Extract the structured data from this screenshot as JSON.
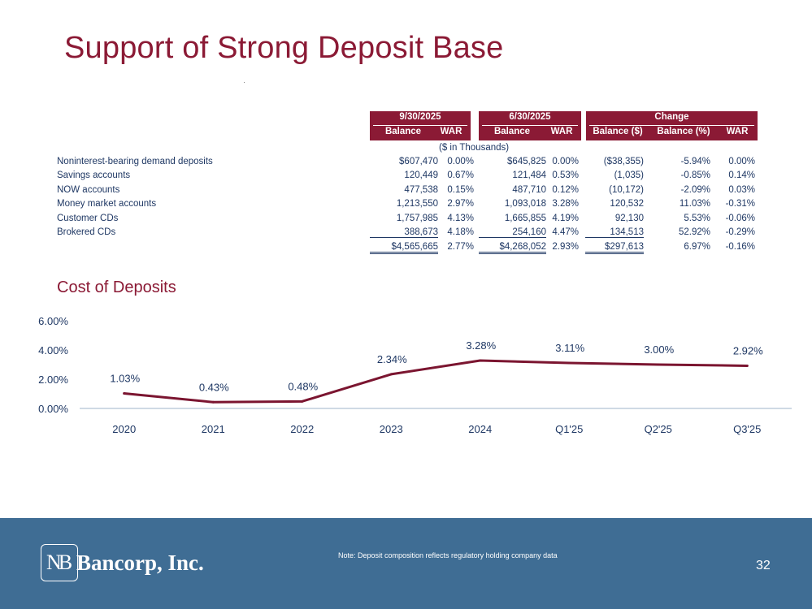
{
  "title": "Support of Strong Deposit Base",
  "table": {
    "groups": {
      "current": "9/30/2025",
      "prior": "6/30/2025",
      "change": "Change"
    },
    "columns": {
      "cur_balance": "Balance",
      "cur_war": "WAR",
      "prior_balance": "Balance",
      "prior_war": "WAR",
      "chg_balance_usd": "Balance ($)",
      "chg_balance_pct": "Balance (%)",
      "chg_war": "WAR"
    },
    "units": "($ in Thousands)",
    "rows": [
      {
        "label": "Noninterest-bearing demand deposits",
        "cur_balance": "$607,470",
        "cur_war": "0.00%",
        "prior_balance": "$645,825",
        "prior_war": "0.00%",
        "chg_usd": "($38,355)",
        "chg_pct": "-5.94%",
        "chg_war": "0.00%"
      },
      {
        "label": "Savings accounts",
        "cur_balance": "120,449",
        "cur_war": "0.67%",
        "prior_balance": "121,484",
        "prior_war": "0.53%",
        "chg_usd": "(1,035)",
        "chg_pct": "-0.85%",
        "chg_war": "0.14%"
      },
      {
        "label": "NOW accounts",
        "cur_balance": "477,538",
        "cur_war": "0.15%",
        "prior_balance": "487,710",
        "prior_war": "0.12%",
        "chg_usd": "(10,172)",
        "chg_pct": "-2.09%",
        "chg_war": "0.03%"
      },
      {
        "label": "Money market accounts",
        "cur_balance": "1,213,550",
        "cur_war": "2.97%",
        "prior_balance": "1,093,018",
        "prior_war": "3.28%",
        "chg_usd": "120,532",
        "chg_pct": "11.03%",
        "chg_war": "-0.31%"
      },
      {
        "label": "Customer CDs",
        "cur_balance": "1,757,985",
        "cur_war": "4.13%",
        "prior_balance": "1,665,855",
        "prior_war": "4.19%",
        "chg_usd": "92,130",
        "chg_pct": "5.53%",
        "chg_war": "-0.06%"
      },
      {
        "label": "Brokered CDs",
        "cur_balance": "388,673",
        "cur_war": "4.18%",
        "prior_balance": "254,160",
        "prior_war": "4.47%",
        "chg_usd": "134,513",
        "chg_pct": "52.92%",
        "chg_war": "-0.29%"
      },
      {
        "label": "",
        "cur_balance": "$4,565,665",
        "cur_war": "2.77%",
        "prior_balance": "$4,268,052",
        "prior_war": "2.93%",
        "chg_usd": "$297,613",
        "chg_pct": "6.97%",
        "chg_war": "-0.16%"
      }
    ]
  },
  "chart_data": {
    "type": "line",
    "title": "Cost of Deposits",
    "categories": [
      "2020",
      "2021",
      "2022",
      "2023",
      "2024",
      "Q1'25",
      "Q2'25",
      "Q3'25"
    ],
    "values": [
      1.03,
      0.43,
      0.48,
      2.34,
      3.28,
      3.11,
      3.0,
      2.92
    ],
    "data_labels": [
      "1.03%",
      "0.43%",
      "0.48%",
      "2.34%",
      "3.28%",
      "3.11%",
      "3.00%",
      "2.92%"
    ],
    "y_ticks": [
      "0.00%",
      "2.00%",
      "4.00%",
      "6.00%"
    ],
    "ylim": [
      0,
      6
    ],
    "line_color": "#7b1530",
    "grid": false
  },
  "footer": {
    "logo_mark": "NB",
    "logo_name": "Bancorp, Inc.",
    "note": "Note: Deposit composition reflects regulatory holding company data",
    "page_number": "32"
  }
}
